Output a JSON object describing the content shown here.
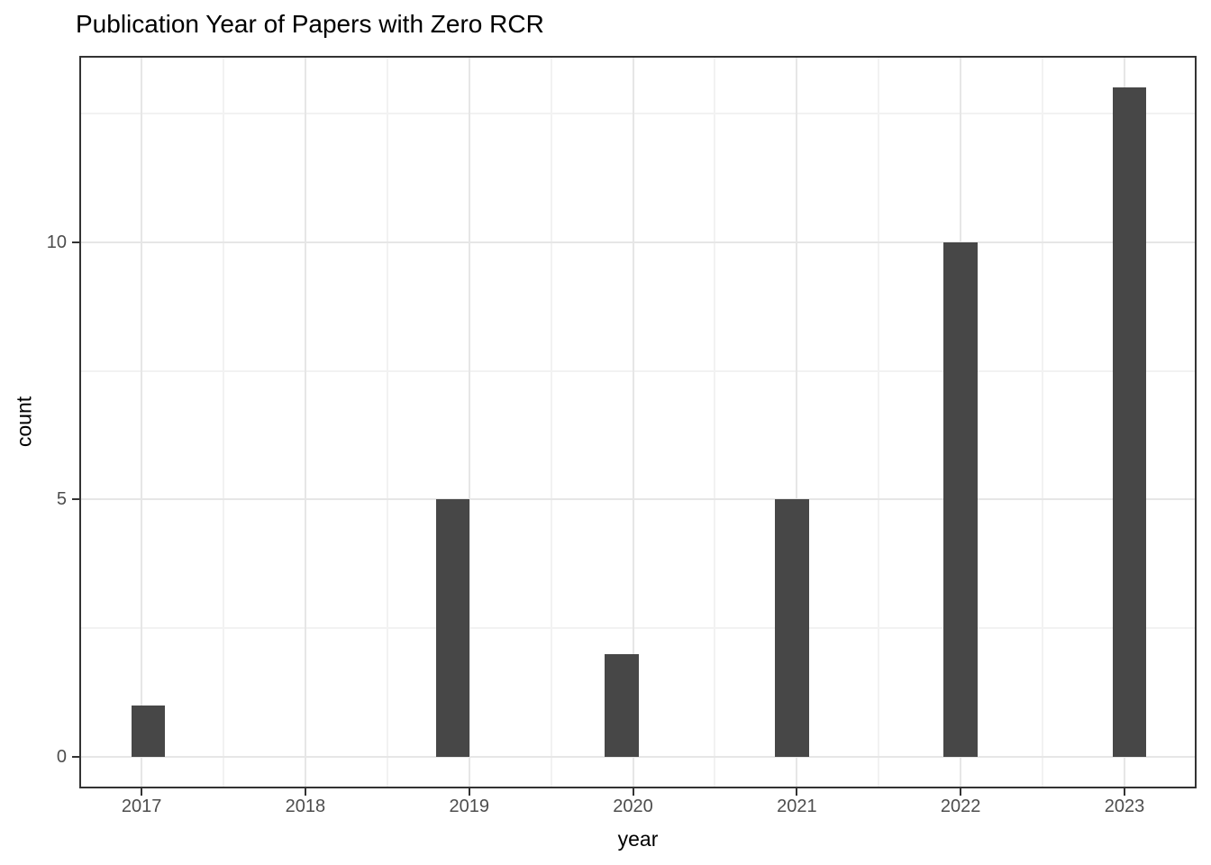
{
  "title": "Publication Year of Papers with Zero RCR",
  "colors": {
    "background": "#ffffff",
    "bar_fill": "#474747",
    "panel_border": "#333333",
    "grid_major": "#e6e6e6",
    "grid_minor": "#f2f2f2",
    "tick_mark": "#333333",
    "tick_label": "#4d4d4d",
    "axis_title": "#000000",
    "title": "#000000"
  },
  "chart_data": {
    "type": "bar",
    "title": "Publication Year of Papers with Zero RCR",
    "xlabel": "year",
    "ylabel": "count",
    "categories": [
      "2017",
      "2018",
      "2019",
      "2020",
      "2021",
      "2022",
      "2023"
    ],
    "values": [
      1,
      0,
      5,
      2,
      5,
      10,
      13
    ],
    "bars": [
      {
        "x": 2017.04,
        "count": 1
      },
      {
        "x": 2018.9,
        "count": 5
      },
      {
        "x": 2019.93,
        "count": 2
      },
      {
        "x": 2020.97,
        "count": 5
      },
      {
        "x": 2022.0,
        "count": 10
      },
      {
        "x": 2023.03,
        "count": 13
      }
    ],
    "bar_width_x": 0.207,
    "x_ticks": [
      2017,
      2018,
      2019,
      2020,
      2021,
      2022,
      2023
    ],
    "y_ticks": [
      0,
      5,
      10
    ],
    "x_minor": [
      2017.5,
      2018.5,
      2019.5,
      2020.5,
      2021.5,
      2022.5
    ],
    "y_minor": [
      2.5,
      7.5,
      12.5
    ],
    "xlim": [
      2016.62,
      2023.44
    ],
    "ylim": [
      -0.61,
      13.62
    ],
    "grid": true,
    "legend": false
  }
}
